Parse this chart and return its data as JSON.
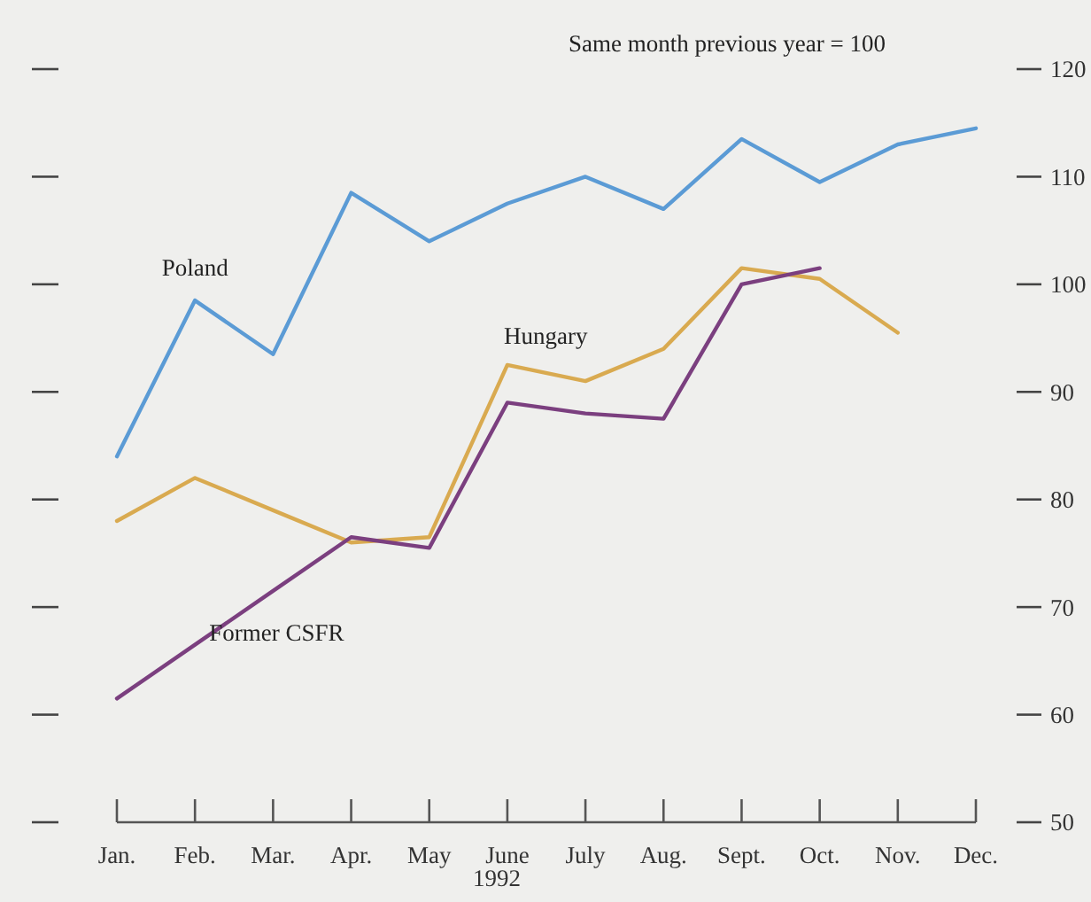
{
  "chart_data": {
    "type": "line",
    "ylabel": "Same month previous year = 100",
    "xlabel": "1992",
    "categories": [
      "Jan.",
      "Feb.",
      "Mar.",
      "Apr.",
      "May",
      "June",
      "July",
      "Aug.",
      "Sept.",
      "Oct.",
      "Nov.",
      "Dec."
    ],
    "series": [
      {
        "name": "Poland",
        "color": "#5b9bd5",
        "values": [
          84,
          98.5,
          93.5,
          108.5,
          104,
          107.5,
          110,
          107,
          113.5,
          109.5,
          113,
          114.5
        ]
      },
      {
        "name": "Hungary",
        "color": "#d9aa50",
        "values": [
          78,
          82,
          79,
          76,
          76.5,
          92.5,
          91,
          94,
          101.5,
          100.5,
          95.5,
          null
        ]
      },
      {
        "name": "Former CSFR",
        "color": "#7b3f7f",
        "values": [
          61.5,
          66.5,
          71.5,
          76.5,
          75.5,
          89,
          88,
          87.5,
          100,
          101.5,
          null,
          null
        ]
      }
    ],
    "ylim": [
      50,
      120
    ],
    "yticks": [
      50,
      60,
      70,
      80,
      90,
      100,
      110,
      120
    ],
    "grid": false
  }
}
